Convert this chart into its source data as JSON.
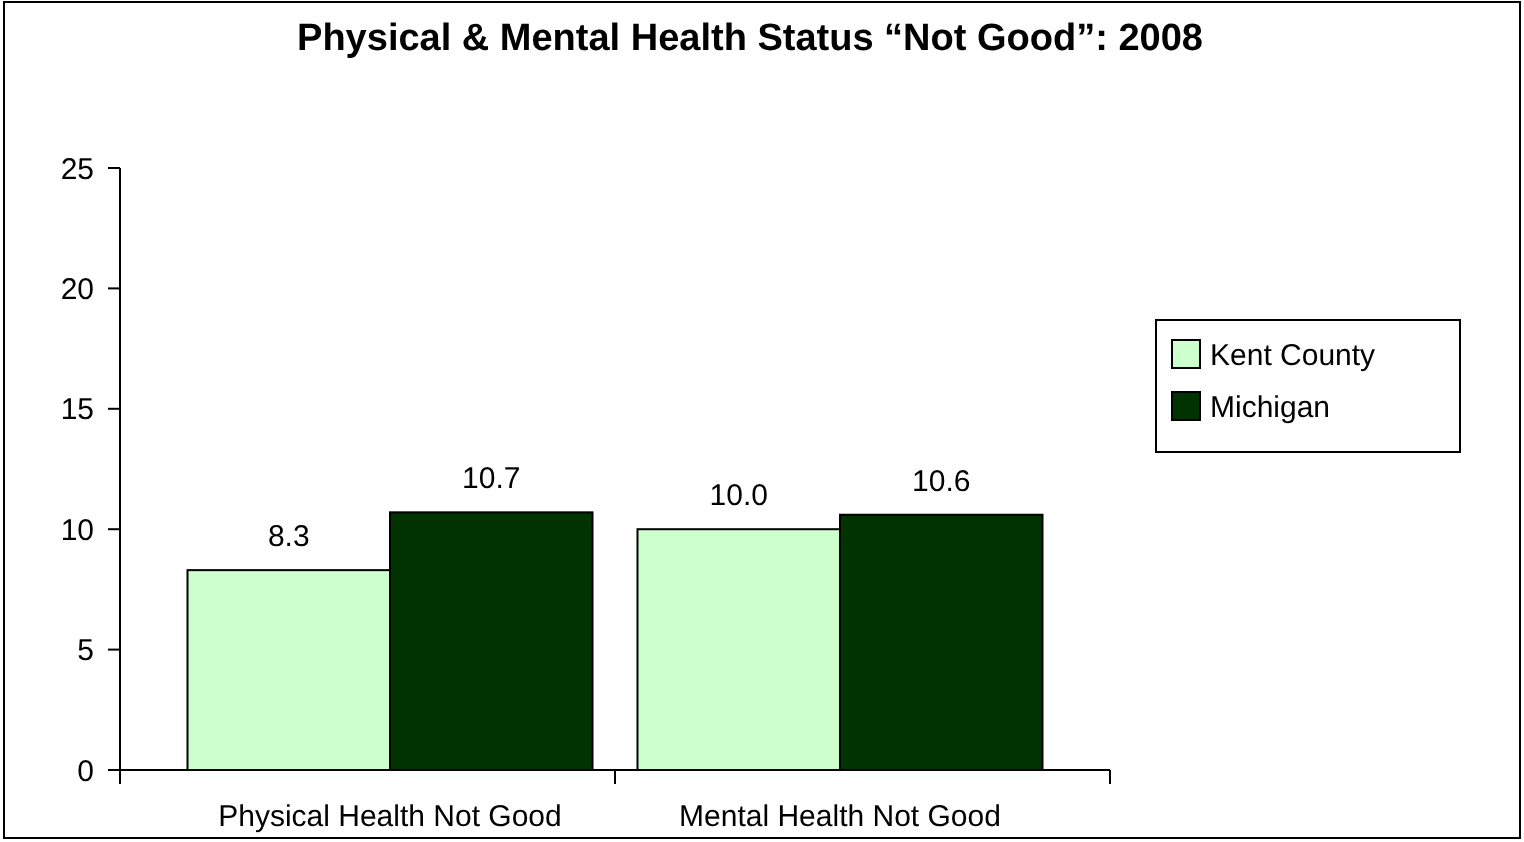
{
  "chart_data": {
    "type": "bar",
    "title": "Physical & Mental Health Status “Not Good”: 2008",
    "categories": [
      "Physical Health Not Good",
      "Mental Health Not Good"
    ],
    "series": [
      {
        "name": "Kent County",
        "color": "#ccffcc",
        "values": [
          8.3,
          10.0
        ],
        "value_labels": [
          "8.3",
          "10.0"
        ]
      },
      {
        "name": "Michigan",
        "color": "#003300",
        "values": [
          10.7,
          10.6
        ],
        "value_labels": [
          "10.7",
          "10.6"
        ]
      }
    ],
    "ylim": [
      0,
      25
    ],
    "yticks": [
      0,
      5,
      10,
      15,
      20,
      25
    ],
    "grid": false,
    "legend": "right"
  }
}
